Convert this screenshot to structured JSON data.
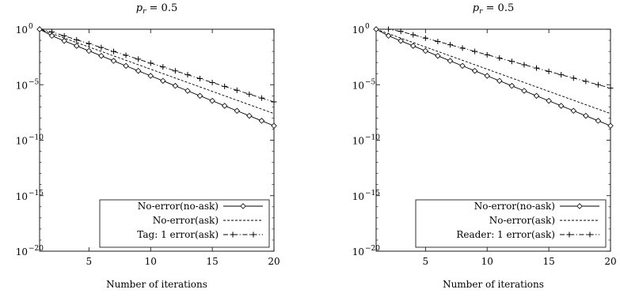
{
  "chart_data": [
    {
      "type": "line",
      "title_main": "p",
      "title_sub": "r",
      "title_value": " = 0.5",
      "xlabel": "Number of iterations",
      "ylabel": "",
      "x_range": [
        1,
        20
      ],
      "y_range_log10": [
        -20,
        0
      ],
      "y_scale": "log",
      "grid": false,
      "legend_position": "bottom-right",
      "x_ticks": [
        5,
        10,
        15,
        20
      ],
      "x_tick_labels": [
        "5",
        "10",
        "15",
        "20"
      ],
      "y_ticks_log10": [
        0,
        -5,
        -10,
        -15,
        -20
      ],
      "y_tick_bases": [
        "10",
        "10",
        "10",
        "10",
        "10"
      ],
      "y_tick_exps": [
        "0",
        "−5",
        "−10",
        "−15",
        "−20"
      ],
      "x": [
        1,
        2,
        3,
        4,
        5,
        6,
        7,
        8,
        9,
        10,
        11,
        12,
        13,
        14,
        15,
        16,
        17,
        18,
        19,
        20
      ],
      "series": [
        {
          "name": "No-error(no-ask)",
          "style": "solid-diamond",
          "log10_values": [
            0,
            -0.59,
            -1.05,
            -1.5,
            -1.95,
            -2.4,
            -2.85,
            -3.3,
            -3.75,
            -4.2,
            -4.65,
            -5.1,
            -5.55,
            -6.0,
            -6.45,
            -6.9,
            -7.35,
            -7.8,
            -8.25,
            -8.7
          ]
        },
        {
          "name": "No-error(ask)",
          "style": "dashed",
          "log10_values": [
            0,
            -0.4,
            -0.8,
            -1.2,
            -1.6,
            -2.0,
            -2.4,
            -2.8,
            -3.2,
            -3.6,
            -4.0,
            -4.4,
            -4.8,
            -5.2,
            -5.6,
            -6.0,
            -6.4,
            -6.8,
            -7.2,
            -7.6
          ]
        },
        {
          "name": "Tag: 1 error(ask)",
          "style": "dashdot-plus",
          "log10_values": [
            0,
            -0.25,
            -0.6,
            -0.95,
            -1.3,
            -1.65,
            -2.0,
            -2.35,
            -2.7,
            -3.05,
            -3.4,
            -3.75,
            -4.1,
            -4.45,
            -4.8,
            -5.15,
            -5.5,
            -5.85,
            -6.2,
            -6.55
          ]
        }
      ]
    },
    {
      "type": "line",
      "title_main": "p",
      "title_sub": "r",
      "title_value": " = 0.5",
      "xlabel": "Number of iterations",
      "ylabel": "",
      "x_range": [
        1,
        20
      ],
      "y_range_log10": [
        -20,
        0
      ],
      "y_scale": "log",
      "grid": false,
      "legend_position": "bottom-right",
      "x_ticks": [
        5,
        10,
        15,
        20
      ],
      "x_tick_labels": [
        "5",
        "10",
        "15",
        "20"
      ],
      "y_ticks_log10": [
        0,
        -5,
        -10,
        -15,
        -20
      ],
      "y_tick_bases": [
        "10",
        "10",
        "10",
        "10",
        "10"
      ],
      "y_tick_exps": [
        "0",
        "−5",
        "−10",
        "−15",
        "−20"
      ],
      "x": [
        1,
        2,
        3,
        4,
        5,
        6,
        7,
        8,
        9,
        10,
        11,
        12,
        13,
        14,
        15,
        16,
        17,
        18,
        19,
        20
      ],
      "series": [
        {
          "name": "No-error(no-ask)",
          "style": "solid-diamond",
          "log10_values": [
            0,
            -0.59,
            -1.05,
            -1.5,
            -1.95,
            -2.4,
            -2.85,
            -3.3,
            -3.75,
            -4.2,
            -4.65,
            -5.1,
            -5.55,
            -6.0,
            -6.45,
            -6.9,
            -7.35,
            -7.8,
            -8.25,
            -8.7
          ]
        },
        {
          "name": "No-error(ask)",
          "style": "dashed",
          "log10_values": [
            0,
            -0.4,
            -0.8,
            -1.2,
            -1.6,
            -2.0,
            -2.4,
            -2.8,
            -3.2,
            -3.6,
            -4.0,
            -4.4,
            -4.8,
            -5.2,
            -5.6,
            -6.0,
            -6.4,
            -6.8,
            -7.2,
            -7.6
          ]
        },
        {
          "name": "Reader: 1 error(ask)",
          "style": "dashdot-plus",
          "log10_values": [
            0,
            0,
            -0.2,
            -0.5,
            -0.8,
            -1.1,
            -1.4,
            -1.7,
            -2.0,
            -2.3,
            -2.6,
            -2.9,
            -3.2,
            -3.5,
            -3.8,
            -4.1,
            -4.4,
            -4.7,
            -5.0,
            -5.3
          ]
        }
      ]
    }
  ]
}
